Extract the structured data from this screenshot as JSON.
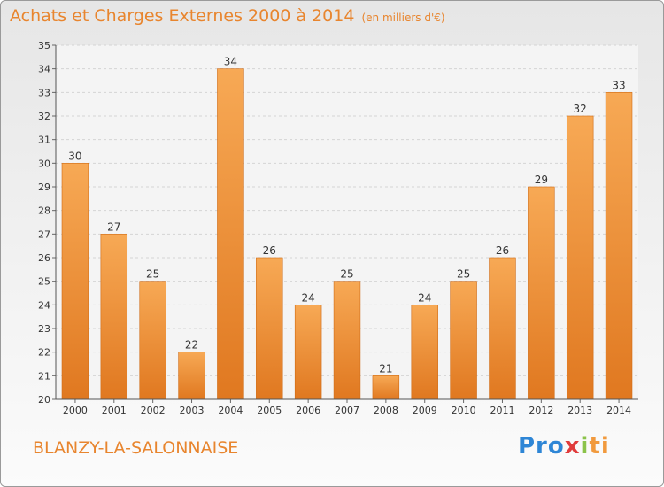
{
  "title": "Achats et Charges Externes 2000 à 2014",
  "unit": "(en milliers d'€)",
  "city": "BLANZY-LA-SALONNAISE",
  "logo": {
    "p1": "Pro",
    "p2": "x",
    "p3": "i",
    "p4": "ti"
  },
  "colors": {
    "bar": "#f0973f",
    "bar_dark": "#e07820",
    "title": "#e8852e"
  },
  "chart_data": {
    "type": "bar",
    "categories": [
      "2000",
      "2001",
      "2002",
      "2003",
      "2004",
      "2005",
      "2006",
      "2007",
      "2008",
      "2009",
      "2010",
      "2011",
      "2012",
      "2013",
      "2014"
    ],
    "values": [
      30,
      27,
      25,
      22,
      34,
      26,
      24,
      25,
      21,
      24,
      25,
      26,
      29,
      32,
      33
    ],
    "ylim": [
      20,
      35
    ],
    "yticks": [
      20,
      21,
      22,
      23,
      24,
      25,
      26,
      27,
      28,
      29,
      30,
      31,
      32,
      33,
      34,
      35
    ],
    "grid": true
  }
}
